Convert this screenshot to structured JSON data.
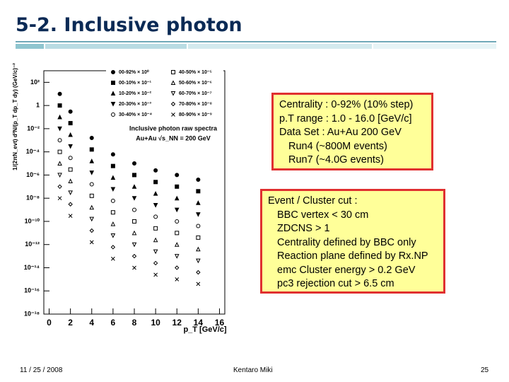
{
  "header": {
    "title": "5-2. Inclusive photon"
  },
  "chart_data": {
    "type": "scatter",
    "y_label": "1/(2πN_evt) d²N/(p_T dp_T dy) (GeV/c)⁻²",
    "x_label": "p_T [GeV/c]",
    "legend_title": [
      "Inclusive photon raw spectra",
      "Au+Au √s_NN = 200 GeV"
    ],
    "log_y": true,
    "xlim": [
      -0.5,
      16.5
    ],
    "ylim": [
      1e-18,
      1000
    ],
    "xticks": [
      0,
      2,
      4,
      6,
      8,
      10,
      12,
      14,
      16
    ],
    "yticks": [
      {
        "value": 100,
        "label": "10²"
      },
      1,
      {
        "value": 0.01,
        "label": "10⁻²"
      },
      {
        "value": 0.0001,
        "label": "10⁻⁴"
      },
      {
        "value": 1e-06,
        "label": "10⁻⁶"
      },
      {
        "value": 1e-08,
        "label": "10⁻⁸"
      },
      {
        "value": 1e-10,
        "label": "10⁻¹⁰"
      },
      {
        "value": 1e-12,
        "label": "10⁻¹²"
      },
      {
        "value": 1e-14,
        "label": "10⁻¹⁴"
      },
      {
        "value": 1e-16,
        "label": "10⁻¹⁶"
      },
      {
        "value": 1e-18,
        "label": "10⁻¹⁸"
      }
    ],
    "x": [
      1,
      2,
      4,
      6,
      8,
      10,
      12,
      14
    ],
    "series": [
      {
        "name": "00-92% × 10⁰",
        "color": "#000000",
        "marker": "circle",
        "filled": true,
        "values": [
          10,
          0.3,
          0.0016,
          6e-05,
          1e-05,
          2.5e-06,
          1e-06,
          4e-07
        ]
      },
      {
        "name": "00-10% × 10⁻¹",
        "color": "#000000",
        "marker": "square",
        "filled": true,
        "values": [
          1,
          0.03,
          0.00016,
          6e-06,
          1e-06,
          2.5e-07,
          1e-07,
          4e-08
        ]
      },
      {
        "name": "10-20% × 10⁻²",
        "color": "#000000",
        "marker": "triangle",
        "filled": true,
        "values": [
          0.1,
          0.003,
          1.6e-05,
          6e-07,
          1e-07,
          2.5e-08,
          1e-08,
          4e-09
        ]
      },
      {
        "name": "20-30% × 10⁻³",
        "color": "#000000",
        "marker": "triangle-down",
        "filled": true,
        "values": [
          0.01,
          0.0003,
          1.6e-06,
          6e-08,
          1e-08,
          2.5e-09,
          1e-09,
          4e-10
        ]
      },
      {
        "name": "30-40% × 10⁻⁴",
        "color": "#000000",
        "marker": "circle",
        "filled": false,
        "values": [
          0.001,
          3e-05,
          1.6e-07,
          6e-09,
          1e-09,
          2.5e-10,
          1e-10,
          4e-11
        ]
      },
      {
        "name": "40-50% × 10⁻⁵",
        "color": "#000000",
        "marker": "square",
        "filled": false,
        "values": [
          0.0001,
          3e-06,
          1.6e-08,
          6e-10,
          1e-10,
          2.5e-11,
          1e-11,
          4e-12
        ]
      },
      {
        "name": "50-60% × 10⁻⁶",
        "color": "#000000",
        "marker": "triangle",
        "filled": false,
        "values": [
          1e-05,
          3e-07,
          1.6e-09,
          6e-11,
          1e-11,
          2.5e-12,
          1e-12,
          4e-13
        ]
      },
      {
        "name": "60-70% × 10⁻⁷",
        "color": "#000000",
        "marker": "triangle-down",
        "filled": false,
        "values": [
          1e-06,
          3e-08,
          1.6e-10,
          6e-12,
          1e-12,
          2.5e-13,
          1e-13,
          4e-14
        ]
      },
      {
        "name": "70-80% × 10⁻⁸",
        "color": "#000000",
        "marker": "diamond",
        "filled": false,
        "values": [
          1e-07,
          3e-09,
          1.6e-11,
          6e-13,
          1e-13,
          2.5e-14,
          1e-14,
          4e-15
        ]
      },
      {
        "name": "80-90% × 10⁻⁹",
        "color": "#000000",
        "marker": "cross",
        "filled": false,
        "values": [
          1e-08,
          3e-10,
          1.6e-12,
          6e-14,
          1e-14,
          2.5e-15,
          1e-15,
          4e-16
        ]
      }
    ]
  },
  "boxes": [
    {
      "lines": [
        "Centrality : 0-92% (10% step)",
        "p.T range : 1.0 - 16.0 [GeV/c]",
        "Data Set :  Au+Au 200 GeV",
        "Run4 (~800M events)",
        "Run7 (~4.0G events)"
      ]
    },
    {
      "lines": [
        "Event / Cluster cut :",
        "BBC vertex < 30 cm",
        "ZDCNS > 1",
        "Centrality defined by BBC only",
        "Reaction plane defined by Rx.NP",
        "emc Cluster energy > 0.2 GeV",
        "pc3 rejection cut > 6.5 cm"
      ]
    }
  ],
  "footer": {
    "date": "11 / 25 / 2008",
    "author": "Kentaro Miki",
    "page": "25"
  }
}
